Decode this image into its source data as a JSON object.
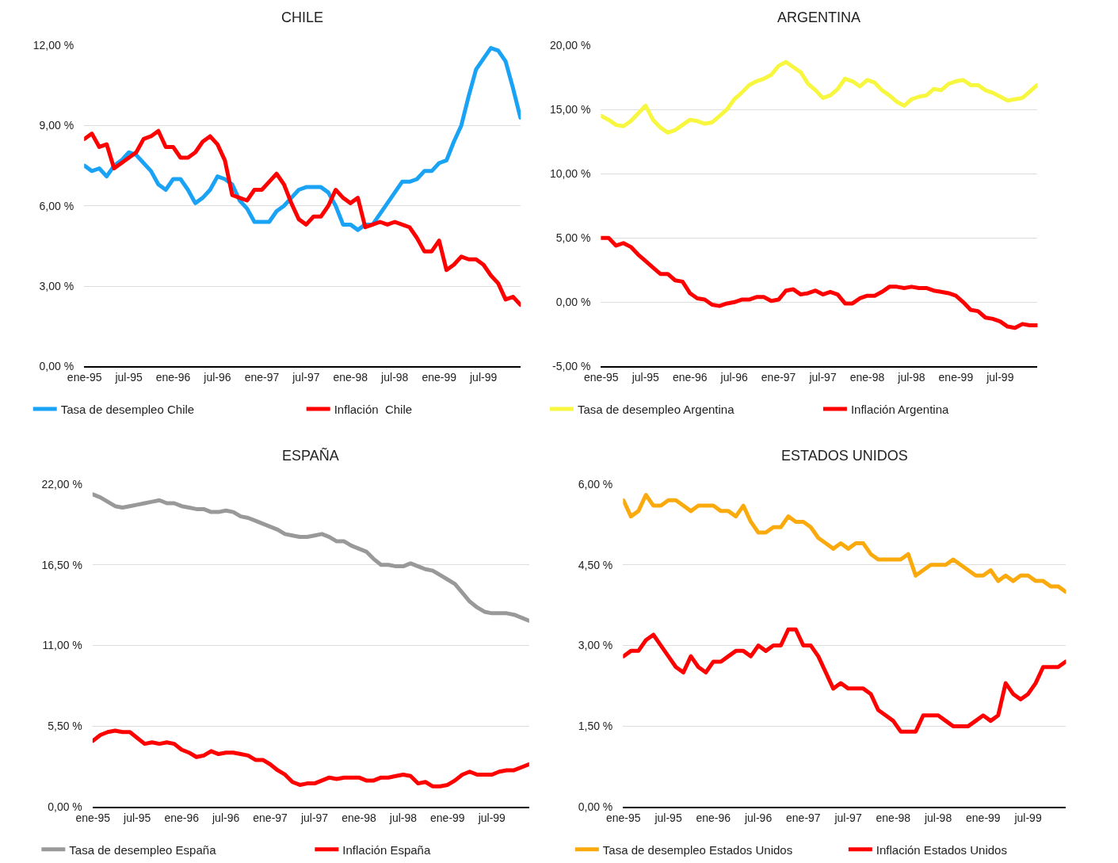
{
  "chart_data": [
    {
      "type": "line",
      "title": "CHILE",
      "categories": [
        "ene-95",
        null,
        null,
        null,
        null,
        null,
        "jul-95",
        null,
        null,
        null,
        null,
        null,
        "ene-96",
        null,
        null,
        null,
        null,
        null,
        "jul-96",
        null,
        null,
        null,
        null,
        null,
        "ene-97",
        null,
        null,
        null,
        null,
        null,
        "jul-97",
        null,
        null,
        null,
        null,
        null,
        "ene-98",
        null,
        null,
        null,
        null,
        null,
        "jul-98",
        null,
        null,
        null,
        null,
        null,
        "ene-99",
        null,
        null,
        null,
        null,
        null,
        "jul-99",
        null,
        null,
        null,
        null,
        null
      ],
      "series": [
        {
          "name": "Tasa de desempleo Chile",
          "color": "#1aa3f5",
          "values": [
            7.5,
            7.3,
            7.4,
            7.1,
            7.5,
            7.7,
            8.0,
            7.9,
            7.6,
            7.3,
            6.8,
            6.6,
            7.0,
            7.0,
            6.6,
            6.1,
            6.3,
            6.6,
            7.1,
            7.0,
            6.8,
            6.2,
            5.9,
            5.4,
            5.4,
            5.4,
            5.8,
            6.0,
            6.3,
            6.6,
            6.7,
            6.7,
            6.7,
            6.5,
            6.0,
            5.3,
            5.3,
            5.1,
            5.3,
            5.3,
            5.7,
            6.1,
            6.5,
            6.9,
            6.9,
            7.0,
            7.3,
            7.3,
            7.6,
            7.7,
            8.4,
            9.0,
            10.1,
            11.1,
            11.5,
            11.9,
            11.8,
            11.4,
            10.4,
            9.3
          ]
        },
        {
          "name": "Inflación  Chile",
          "color": "#ff0000",
          "values": [
            8.5,
            8.7,
            8.2,
            8.3,
            7.4,
            7.6,
            7.8,
            8.0,
            8.5,
            8.6,
            8.8,
            8.2,
            8.2,
            7.8,
            7.8,
            8.0,
            8.4,
            8.6,
            8.3,
            7.7,
            6.4,
            6.3,
            6.2,
            6.6,
            6.6,
            6.9,
            7.2,
            6.8,
            6.1,
            5.5,
            5.3,
            5.6,
            5.6,
            6.0,
            6.6,
            6.3,
            6.1,
            6.3,
            5.2,
            5.3,
            5.4,
            5.3,
            5.4,
            5.3,
            5.2,
            4.8,
            4.3,
            4.3,
            4.7,
            3.6,
            3.8,
            4.1,
            4.0,
            4.0,
            3.8,
            3.4,
            3.1,
            2.5,
            2.6,
            2.3
          ]
        }
      ],
      "ylim": [
        0,
        12
      ],
      "yticks": [
        {
          "value": 0,
          "label": "0,00 %"
        },
        {
          "value": 3,
          "label": "3,00 %"
        },
        {
          "value": 6,
          "label": "6,00 %"
        },
        {
          "value": 9,
          "label": "9,00 %"
        },
        {
          "value": 12,
          "label": "12,00 %"
        }
      ],
      "grid": "y",
      "legend": "bottom"
    },
    {
      "type": "line",
      "title": "ARGENTINA",
      "categories": [
        "ene-95",
        null,
        null,
        null,
        null,
        null,
        "jul-95",
        null,
        null,
        null,
        null,
        null,
        "ene-96",
        null,
        null,
        null,
        null,
        null,
        "jul-96",
        null,
        null,
        null,
        null,
        null,
        "ene-97",
        null,
        null,
        null,
        null,
        null,
        "jul-97",
        null,
        null,
        null,
        null,
        null,
        "ene-98",
        null,
        null,
        null,
        null,
        null,
        "jul-98",
        null,
        null,
        null,
        null,
        null,
        "ene-99",
        null,
        null,
        null,
        null,
        null,
        "jul-99",
        null,
        null,
        null,
        null,
        null
      ],
      "series": [
        {
          "name": "Tasa de desempleo Argentina",
          "color": "#f7f740",
          "values": [
            14.5,
            14.2,
            13.8,
            13.7,
            14.1,
            14.7,
            15.3,
            14.2,
            13.6,
            13.2,
            13.4,
            13.8,
            14.2,
            14.1,
            13.9,
            14.0,
            14.5,
            15.0,
            15.8,
            16.3,
            16.9,
            17.2,
            17.4,
            17.7,
            18.4,
            18.7,
            18.3,
            17.9,
            17.0,
            16.5,
            15.9,
            16.1,
            16.6,
            17.4,
            17.2,
            16.8,
            17.3,
            17.1,
            16.5,
            16.1,
            15.6,
            15.3,
            15.8,
            16.0,
            16.1,
            16.6,
            16.5,
            17.0,
            17.2,
            17.3,
            16.9,
            16.9,
            16.5,
            16.3,
            16.0,
            15.7,
            15.8,
            15.9,
            16.4,
            16.9
          ]
        },
        {
          "name": "Inflación Argentina",
          "color": "#ff0000",
          "values": [
            5.0,
            5.0,
            4.4,
            4.6,
            4.3,
            3.7,
            3.2,
            2.7,
            2.2,
            2.2,
            1.7,
            1.6,
            0.7,
            0.3,
            0.2,
            -0.2,
            -0.3,
            -0.1,
            0.0,
            0.2,
            0.2,
            0.4,
            0.4,
            0.1,
            0.2,
            0.9,
            1.0,
            0.6,
            0.7,
            0.9,
            0.6,
            0.8,
            0.6,
            -0.1,
            -0.1,
            0.3,
            0.5,
            0.5,
            0.8,
            1.2,
            1.2,
            1.1,
            1.2,
            1.1,
            1.1,
            0.9,
            0.8,
            0.7,
            0.5,
            0.0,
            -0.6,
            -0.7,
            -1.2,
            -1.3,
            -1.5,
            -1.9,
            -2.0,
            -1.7,
            -1.8,
            -1.8
          ]
        }
      ],
      "ylim": [
        -5,
        20
      ],
      "yticks": [
        {
          "value": -5,
          "label": "-5,00 %"
        },
        {
          "value": 0,
          "label": "0,00 %"
        },
        {
          "value": 5,
          "label": "5,00 %"
        },
        {
          "value": 10,
          "label": "10,00 %"
        },
        {
          "value": 15,
          "label": "15,00 %"
        },
        {
          "value": 20,
          "label": "20,00 %"
        }
      ],
      "grid": "y",
      "legend": "bottom"
    },
    {
      "type": "line",
      "title": "ESPAÑA",
      "categories": [
        "ene-95",
        null,
        null,
        null,
        null,
        null,
        "jul-95",
        null,
        null,
        null,
        null,
        null,
        "ene-96",
        null,
        null,
        null,
        null,
        null,
        "jul-96",
        null,
        null,
        null,
        null,
        null,
        "ene-97",
        null,
        null,
        null,
        null,
        null,
        "jul-97",
        null,
        null,
        null,
        null,
        null,
        "ene-98",
        null,
        null,
        null,
        null,
        null,
        "jul-98",
        null,
        null,
        null,
        null,
        null,
        "ene-99",
        null,
        null,
        null,
        null,
        null,
        "jul-99",
        null,
        null,
        null,
        null,
        null
      ],
      "series": [
        {
          "name": "Tasa de desempleo España",
          "color": "#999999",
          "values": [
            21.3,
            21.1,
            20.8,
            20.5,
            20.4,
            20.5,
            20.6,
            20.7,
            20.8,
            20.9,
            20.7,
            20.7,
            20.5,
            20.4,
            20.3,
            20.3,
            20.1,
            20.1,
            20.2,
            20.1,
            19.8,
            19.7,
            19.5,
            19.3,
            19.1,
            18.9,
            18.6,
            18.5,
            18.4,
            18.4,
            18.5,
            18.6,
            18.4,
            18.1,
            18.1,
            17.8,
            17.6,
            17.4,
            16.9,
            16.5,
            16.5,
            16.4,
            16.4,
            16.6,
            16.4,
            16.2,
            16.1,
            15.8,
            15.5,
            15.2,
            14.6,
            14.0,
            13.6,
            13.3,
            13.2,
            13.2,
            13.2,
            13.1,
            12.9,
            12.7
          ]
        },
        {
          "name": "Inflación España",
          "color": "#ff0000",
          "values": [
            4.5,
            4.9,
            5.1,
            5.2,
            5.1,
            5.1,
            4.7,
            4.3,
            4.4,
            4.3,
            4.4,
            4.3,
            3.9,
            3.7,
            3.4,
            3.5,
            3.8,
            3.6,
            3.7,
            3.7,
            3.6,
            3.5,
            3.2,
            3.2,
            2.9,
            2.5,
            2.2,
            1.7,
            1.5,
            1.6,
            1.6,
            1.8,
            2.0,
            1.9,
            2.0,
            2.0,
            2.0,
            1.8,
            1.8,
            2.0,
            2.0,
            2.1,
            2.2,
            2.1,
            1.6,
            1.7,
            1.4,
            1.4,
            1.5,
            1.8,
            2.2,
            2.4,
            2.2,
            2.2,
            2.2,
            2.4,
            2.5,
            2.5,
            2.7,
            2.9
          ]
        }
      ],
      "ylim": [
        0,
        22
      ],
      "yticks": [
        {
          "value": 0,
          "label": "0,00 %"
        },
        {
          "value": 5.5,
          "label": "5,50 %"
        },
        {
          "value": 11,
          "label": "11,00 %"
        },
        {
          "value": 16.5,
          "label": "16,50 %"
        },
        {
          "value": 22,
          "label": "22,00 %"
        }
      ],
      "grid": "y",
      "legend": "bottom"
    },
    {
      "type": "line",
      "title": "ESTADOS UNIDOS",
      "categories": [
        "ene-95",
        null,
        null,
        null,
        null,
        null,
        "jul-95",
        null,
        null,
        null,
        null,
        null,
        "ene-96",
        null,
        null,
        null,
        null,
        null,
        "jul-96",
        null,
        null,
        null,
        null,
        null,
        "ene-97",
        null,
        null,
        null,
        null,
        null,
        "jul-97",
        null,
        null,
        null,
        null,
        null,
        "ene-98",
        null,
        null,
        null,
        null,
        null,
        "jul-98",
        null,
        null,
        null,
        null,
        null,
        "ene-99",
        null,
        null,
        null,
        null,
        null,
        "jul-99",
        null,
        null,
        null,
        null,
        null
      ],
      "series": [
        {
          "name": "Tasa de desempleo Estados Unidos",
          "color": "#fbaa0d",
          "values": [
            5.7,
            5.4,
            5.5,
            5.8,
            5.6,
            5.6,
            5.7,
            5.7,
            5.6,
            5.5,
            5.6,
            5.6,
            5.6,
            5.5,
            5.5,
            5.4,
            5.6,
            5.3,
            5.1,
            5.1,
            5.2,
            5.2,
            5.4,
            5.3,
            5.3,
            5.2,
            5.0,
            4.9,
            4.8,
            4.9,
            4.8,
            4.9,
            4.9,
            4.7,
            4.6,
            4.6,
            4.6,
            4.6,
            4.7,
            4.3,
            4.4,
            4.5,
            4.5,
            4.5,
            4.6,
            4.5,
            4.4,
            4.3,
            4.3,
            4.4,
            4.2,
            4.3,
            4.2,
            4.3,
            4.3,
            4.2,
            4.2,
            4.1,
            4.1,
            4.0
          ]
        },
        {
          "name": "Inflación Estados Unidos",
          "color": "#ff0000",
          "values": [
            2.8,
            2.9,
            2.9,
            3.1,
            3.2,
            3.0,
            2.8,
            2.6,
            2.5,
            2.8,
            2.6,
            2.5,
            2.7,
            2.7,
            2.8,
            2.9,
            2.9,
            2.8,
            3.0,
            2.9,
            3.0,
            3.0,
            3.3,
            3.3,
            3.0,
            3.0,
            2.8,
            2.5,
            2.2,
            2.3,
            2.2,
            2.2,
            2.2,
            2.1,
            1.8,
            1.7,
            1.6,
            1.4,
            1.4,
            1.4,
            1.7,
            1.7,
            1.7,
            1.6,
            1.5,
            1.5,
            1.5,
            1.6,
            1.7,
            1.6,
            1.7,
            2.3,
            2.1,
            2.0,
            2.1,
            2.3,
            2.6,
            2.6,
            2.6,
            2.7
          ]
        }
      ],
      "ylim": [
        0,
        6
      ],
      "yticks": [
        {
          "value": 0,
          "label": "0,00 %"
        },
        {
          "value": 1.5,
          "label": "1,50 %"
        },
        {
          "value": 3,
          "label": "3,00 %"
        },
        {
          "value": 4.5,
          "label": "4,50 %"
        },
        {
          "value": 6,
          "label": "6,00 %"
        }
      ],
      "grid": "y",
      "legend": "bottom"
    }
  ]
}
